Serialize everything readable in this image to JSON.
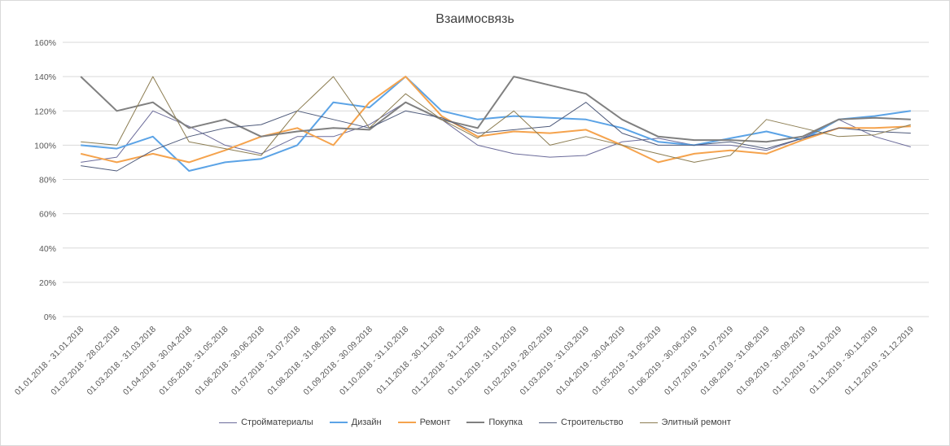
{
  "chart_data": {
    "type": "line",
    "title": "Взаимосвязь",
    "xlabel": "",
    "ylabel": "",
    "ylim": [
      0,
      160
    ],
    "ytick_step": 20,
    "ytick_suffix": "%",
    "grid": true,
    "legend_position": "bottom",
    "categories": [
      "01.01.2018 - 31.01.2018",
      "01.02.2018 - 28.02.2018",
      "01.03.2018 - 31.03.2018",
      "01.04.2018 - 30.04.2018",
      "01.05.2018 - 31.05.2018",
      "01.06.2018 - 30.06.2018",
      "01.07.2018 - 31.07.2018",
      "01.08.2018 - 31.08.2018",
      "01.09.2018 - 30.09.2018",
      "01.10.2018 - 31.10.2018",
      "01.11.2018 - 30.11.2018",
      "01.12.2018 - 31.12.2018",
      "01.01.2019 - 31.01.2019",
      "01.02.2019 - 28.02.2019",
      "01.03.2019 - 31.03.2019",
      "01.04.2019 - 30.04.2019",
      "01.05.2019 - 31.05.2019",
      "01.06.2019 - 30.06.2019",
      "01.07.2019 - 31.07.2019",
      "01.08.2019 - 31.08.2019",
      "01.09.2019 - 30.09.2019",
      "01.10.2019 - 31.10.2019",
      "01.11.2019 - 30.11.2019",
      "01.12.2019 - 31.12.2019"
    ],
    "series": [
      {
        "name": "Стройматериалы",
        "color": "#6b6b9a",
        "width": 1,
        "values": [
          90,
          93,
          120,
          111,
          100,
          95,
          105,
          105,
          112,
          125,
          115,
          100,
          95,
          93,
          94,
          102,
          104,
          100,
          100,
          97,
          104,
          115,
          105,
          99
        ]
      },
      {
        "name": "Дизайн",
        "color": "#5ba3e6",
        "width": 2,
        "values": [
          100,
          98,
          105,
          85,
          90,
          92,
          100,
          125,
          122,
          140,
          120,
          115,
          117,
          116,
          115,
          110,
          102,
          100,
          104,
          108,
          103,
          115,
          117,
          120
        ]
      },
      {
        "name": "Ремонт",
        "color": "#f5a34d",
        "width": 2,
        "values": [
          95,
          90,
          95,
          90,
          97,
          105,
          110,
          100,
          125,
          140,
          117,
          105,
          108,
          107,
          109,
          100,
          90,
          95,
          97,
          95,
          103,
          110,
          110,
          111
        ]
      },
      {
        "name": "Покупка",
        "color": "#808080",
        "width": 2,
        "values": [
          140,
          120,
          125,
          110,
          115,
          105,
          108,
          110,
          109,
          125,
          115,
          110,
          140,
          135,
          130,
          115,
          105,
          103,
          103,
          102,
          105,
          115,
          116,
          115
        ]
      },
      {
        "name": "Строительство",
        "color": "#4e5a7a",
        "width": 1,
        "values": [
          88,
          85,
          97,
          105,
          110,
          112,
          120,
          115,
          110,
          120,
          116,
          107,
          109,
          111,
          125,
          107,
          100,
          100,
          102,
          98,
          104,
          110,
          108,
          107
        ]
      },
      {
        "name": "Элитный ремонт",
        "color": "#8c7d52",
        "width": 1,
        "values": [
          102,
          100,
          140,
          102,
          98,
          94,
          120,
          140,
          110,
          130,
          115,
          104,
          120,
          100,
          105,
          100,
          95,
          90,
          94,
          115,
          110,
          105,
          106,
          112
        ]
      }
    ]
  }
}
